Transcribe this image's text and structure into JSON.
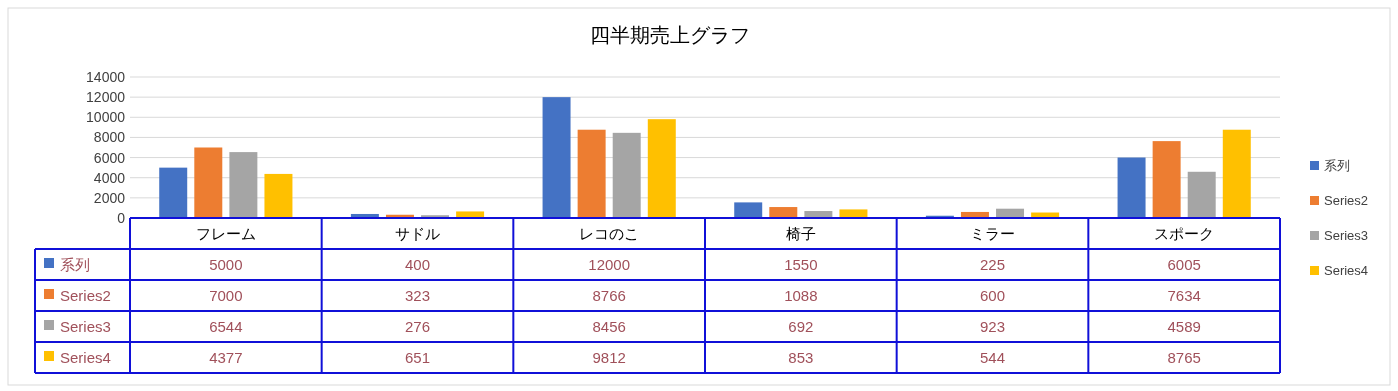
{
  "chart_data": {
    "type": "bar",
    "title": "四半期売上グラフ",
    "categories": [
      "フレーム",
      "サドル",
      "レコのこ",
      "椅子",
      "ミラー",
      "スポーク"
    ],
    "series": [
      {
        "name": "系列",
        "color": "#4472c4",
        "values": [
          5000,
          400,
          12000,
          1550,
          225,
          6005
        ]
      },
      {
        "name": "Series2",
        "color": "#ed7d31",
        "values": [
          7000,
          323,
          8766,
          1088,
          600,
          7634
        ]
      },
      {
        "name": "Series3",
        "color": "#a5a5a5",
        "values": [
          6544,
          276,
          8456,
          692,
          923,
          4589
        ]
      },
      {
        "name": "Series4",
        "color": "#ffc000",
        "values": [
          4377,
          651,
          9812,
          853,
          544,
          8765
        ]
      }
    ],
    "ylim": [
      0,
      14000
    ],
    "yticks": [
      0,
      2000,
      4000,
      6000,
      8000,
      10000,
      12000,
      14000
    ],
    "grid": "y",
    "legend": "right",
    "data_labels": true
  }
}
